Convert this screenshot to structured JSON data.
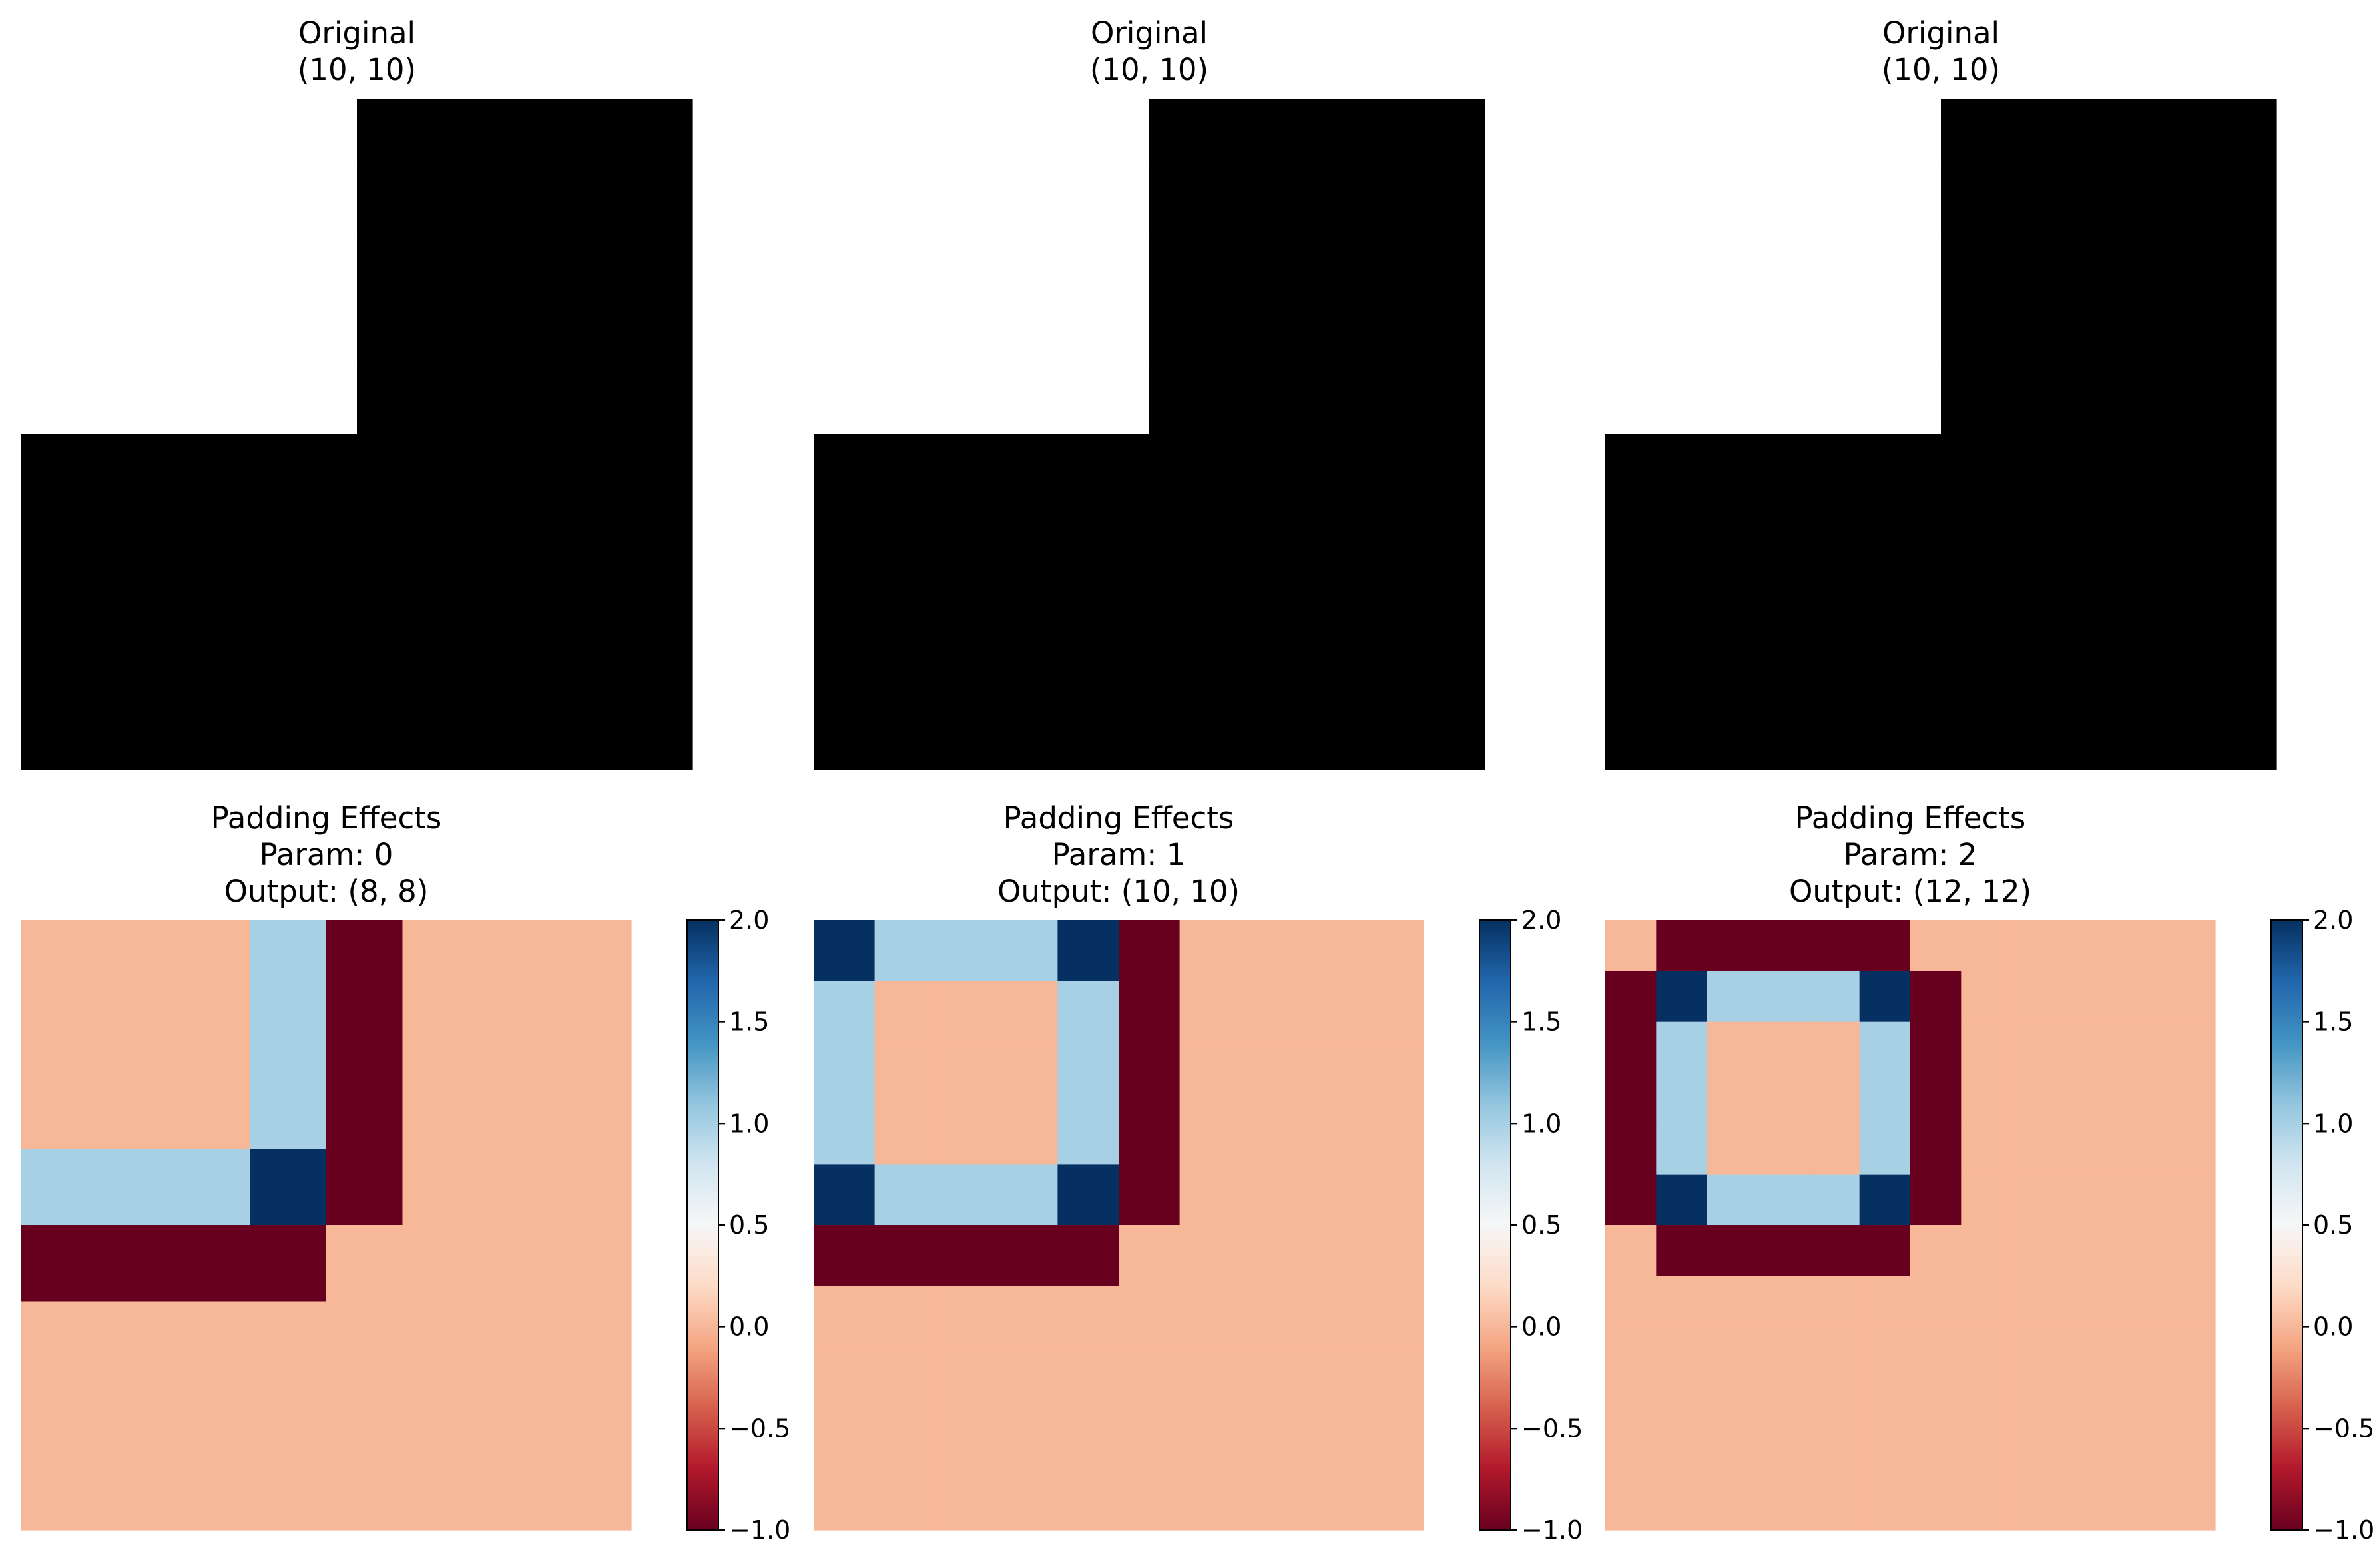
{
  "colormap": {
    "name": "RdBu",
    "stops": [
      "#67001f",
      "#b2182b",
      "#d6604d",
      "#f4a582",
      "#fddbc7",
      "#f7f7f7",
      "#d1e5f0",
      "#92c5de",
      "#4393c3",
      "#2166ac",
      "#053061"
    ],
    "vmin": -1.0,
    "vmax": 2.0
  },
  "colorbar_ticks": [
    "−1.0",
    "−0.5",
    "0.0",
    "0.5",
    "1.0",
    "1.5",
    "2.0"
  ],
  "original_title_lines": [
    "Original",
    "(10, 10)"
  ],
  "original_image": {
    "shape": [
      10,
      10
    ],
    "rows": [
      [
        0,
        0,
        0,
        0,
        0,
        1,
        1,
        1,
        1,
        1
      ],
      [
        0,
        0,
        0,
        0,
        0,
        1,
        1,
        1,
        1,
        1
      ],
      [
        0,
        0,
        0,
        0,
        0,
        1,
        1,
        1,
        1,
        1
      ],
      [
        0,
        0,
        0,
        0,
        0,
        1,
        1,
        1,
        1,
        1
      ],
      [
        0,
        0,
        0,
        0,
        0,
        1,
        1,
        1,
        1,
        1
      ],
      [
        1,
        1,
        1,
        1,
        1,
        1,
        1,
        1,
        1,
        1
      ],
      [
        1,
        1,
        1,
        1,
        1,
        1,
        1,
        1,
        1,
        1
      ],
      [
        1,
        1,
        1,
        1,
        1,
        1,
        1,
        1,
        1,
        1
      ],
      [
        1,
        1,
        1,
        1,
        1,
        1,
        1,
        1,
        1,
        1
      ],
      [
        1,
        1,
        1,
        1,
        1,
        1,
        1,
        1,
        1,
        1
      ]
    ],
    "colors": {
      "0": "#ffffff",
      "1": "#000000"
    }
  },
  "chart_data": [
    {
      "type": "heatmap",
      "title_lines": [
        "Padding Effects",
        "Param: 0",
        "Output: (8, 8)"
      ],
      "shape": [
        8,
        8
      ],
      "values": [
        [
          0,
          0,
          0,
          1,
          -1,
          0,
          0,
          0
        ],
        [
          0,
          0,
          0,
          1,
          -1,
          0,
          0,
          0
        ],
        [
          0,
          0,
          0,
          1,
          -1,
          0,
          0,
          0
        ],
        [
          1,
          1,
          1,
          2,
          -1,
          0,
          0,
          0
        ],
        [
          -1,
          -1,
          -1,
          -1,
          0,
          0,
          0,
          0
        ],
        [
          0,
          0,
          0,
          0,
          0,
          0,
          0,
          0
        ],
        [
          0,
          0,
          0,
          0,
          0,
          0,
          0,
          0
        ],
        [
          0,
          0,
          0,
          0,
          0,
          0,
          0,
          0
        ]
      ],
      "colorbar": {
        "min": -1.0,
        "max": 2.0
      }
    },
    {
      "type": "heatmap",
      "title_lines": [
        "Padding Effects",
        "Param: 1",
        "Output: (10, 10)"
      ],
      "shape": [
        10,
        10
      ],
      "values": [
        [
          2,
          1,
          1,
          1,
          2,
          -1,
          0,
          0,
          0,
          0
        ],
        [
          1,
          0,
          0,
          0,
          1,
          -1,
          0,
          0,
          0,
          0
        ],
        [
          1,
          0,
          0,
          0,
          1,
          -1,
          0,
          0,
          0,
          0
        ],
        [
          1,
          0,
          0,
          0,
          1,
          -1,
          0,
          0,
          0,
          0
        ],
        [
          2,
          1,
          1,
          1,
          2,
          -1,
          0,
          0,
          0,
          0
        ],
        [
          -1,
          -1,
          -1,
          -1,
          -1,
          0,
          0,
          0,
          0,
          0
        ],
        [
          0,
          0,
          0,
          0,
          0,
          0,
          0,
          0,
          0,
          0
        ],
        [
          0,
          0,
          0,
          0,
          0,
          0,
          0,
          0,
          0,
          0
        ],
        [
          0,
          0,
          0,
          0,
          0,
          0,
          0,
          0,
          0,
          0
        ],
        [
          0,
          0,
          0,
          0,
          0,
          0,
          0,
          0,
          0,
          0
        ]
      ],
      "colorbar": {
        "min": -1.0,
        "max": 2.0
      }
    },
    {
      "type": "heatmap",
      "title_lines": [
        "Padding Effects",
        "Param: 2",
        "Output: (12, 12)"
      ],
      "shape": [
        12,
        12
      ],
      "values": [
        [
          0,
          -1,
          -1,
          -1,
          -1,
          -1,
          0,
          0,
          0,
          0,
          0,
          0
        ],
        [
          -1,
          2,
          1,
          1,
          1,
          2,
          -1,
          0,
          0,
          0,
          0,
          0
        ],
        [
          -1,
          1,
          0,
          0,
          0,
          1,
          -1,
          0,
          0,
          0,
          0,
          0
        ],
        [
          -1,
          1,
          0,
          0,
          0,
          1,
          -1,
          0,
          0,
          0,
          0,
          0
        ],
        [
          -1,
          1,
          0,
          0,
          0,
          1,
          -1,
          0,
          0,
          0,
          0,
          0
        ],
        [
          -1,
          2,
          1,
          1,
          1,
          2,
          -1,
          0,
          0,
          0,
          0,
          0
        ],
        [
          0,
          -1,
          -1,
          -1,
          -1,
          -1,
          0,
          0,
          0,
          0,
          0,
          0
        ],
        [
          0,
          0,
          0,
          0,
          0,
          0,
          0,
          0,
          0,
          0,
          0,
          0
        ],
        [
          0,
          0,
          0,
          0,
          0,
          0,
          0,
          0,
          0,
          0,
          0,
          0
        ],
        [
          0,
          0,
          0,
          0,
          0,
          0,
          0,
          0,
          0,
          0,
          0,
          0
        ],
        [
          0,
          0,
          0,
          0,
          0,
          0,
          0,
          0,
          0,
          0,
          0,
          0
        ],
        [
          0,
          0,
          0,
          0,
          0,
          0,
          0,
          0,
          0,
          0,
          0,
          0
        ]
      ],
      "colorbar": {
        "min": -1.0,
        "max": 2.0
      }
    }
  ]
}
